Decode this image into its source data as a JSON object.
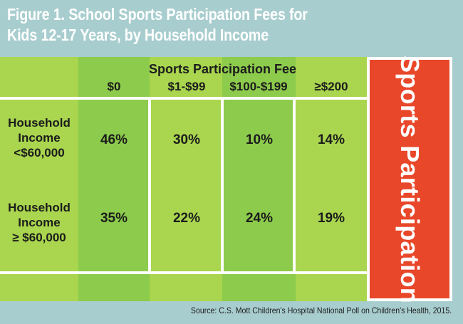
{
  "figure": {
    "title_line1": "Figure 1. School Sports Participation Fees for",
    "title_line2": "Kids 12-17 Years, by Household Income",
    "source": "Source: C.S. Mott Children's Hospital National Poll on Children's Health, 2015.",
    "endzone_label": "Sports Participation"
  },
  "colors": {
    "background": "#a8cdce",
    "field_light": "#a9d64e",
    "field_dark": "#8ccb4b",
    "endzone": "#e9472a",
    "lines": "#ffffff"
  },
  "chart_data": {
    "type": "table",
    "title": "Figure 1. School Sports Participation Fees for Kids 12-17 Years, by Household Income",
    "column_group_label": "Sports Participation Fee",
    "columns": [
      "$0",
      "$1-$99",
      "$100-$199",
      "≥$200"
    ],
    "rows": [
      {
        "label_lines": [
          "Household",
          "Income",
          "<$60,000"
        ],
        "values": [
          "46%",
          "30%",
          "10%",
          "14%"
        ]
      },
      {
        "label_lines": [
          "Household",
          "Income",
          "≥ $60,000"
        ],
        "values": [
          "35%",
          "22%",
          "24%",
          "19%"
        ]
      }
    ]
  }
}
